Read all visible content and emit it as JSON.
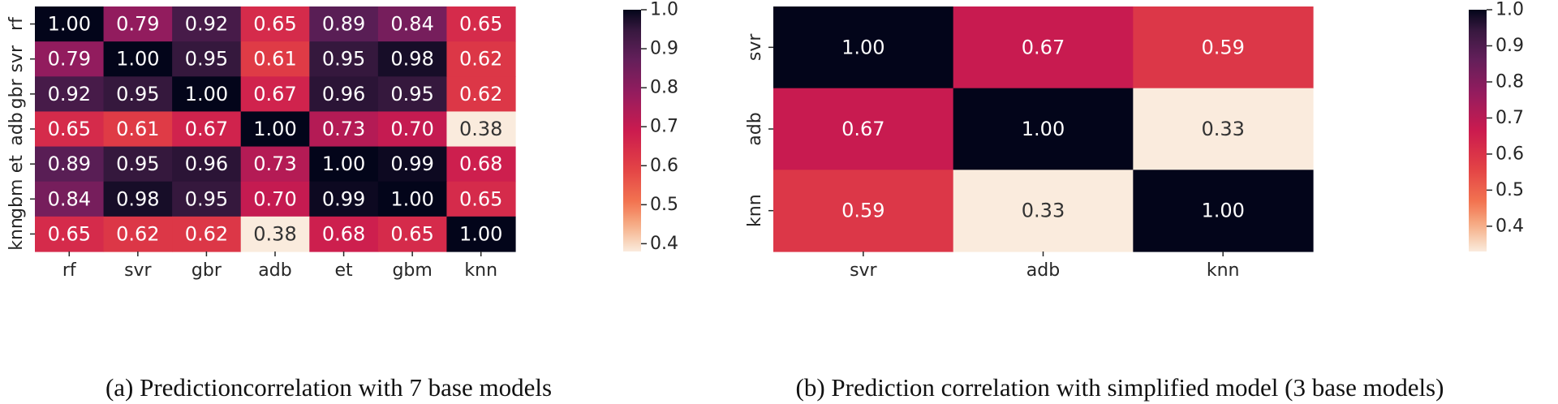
{
  "chart_data": [
    {
      "type": "heatmap",
      "caption": "(a) Predictioncorrelation with 7 base models",
      "title": "",
      "xlabel": "",
      "ylabel": "",
      "rows": [
        "rf",
        "svr",
        "gbr",
        "adb",
        "et",
        "gbm",
        "knn"
      ],
      "cols": [
        "rf",
        "svr",
        "gbr",
        "adb",
        "et",
        "gbm",
        "knn"
      ],
      "values": [
        [
          1.0,
          0.79,
          0.92,
          0.65,
          0.89,
          0.84,
          0.65
        ],
        [
          0.79,
          1.0,
          0.95,
          0.61,
          0.95,
          0.98,
          0.62
        ],
        [
          0.92,
          0.95,
          1.0,
          0.67,
          0.96,
          0.95,
          0.62
        ],
        [
          0.65,
          0.61,
          0.67,
          1.0,
          0.73,
          0.7,
          0.38
        ],
        [
          0.89,
          0.95,
          0.96,
          0.73,
          1.0,
          0.99,
          0.68
        ],
        [
          0.84,
          0.98,
          0.95,
          0.7,
          0.99,
          1.0,
          0.65
        ],
        [
          0.65,
          0.62,
          0.62,
          0.38,
          0.68,
          0.65,
          1.0
        ]
      ],
      "labels": [
        [
          "1.00",
          "0.79",
          "0.92",
          "0.65",
          "0.89",
          "0.84",
          "0.65"
        ],
        [
          "0.79",
          "1.00",
          "0.95",
          "0.61",
          "0.95",
          "0.98",
          "0.62"
        ],
        [
          "0.92",
          "0.95",
          "1.00",
          "0.67",
          "0.96",
          "0.95",
          "0.62"
        ],
        [
          "0.65",
          "0.61",
          "0.67",
          "1.00",
          "0.73",
          "0.70",
          "0.38"
        ],
        [
          "0.89",
          "0.95",
          "0.96",
          "0.73",
          "1.00",
          "0.99",
          "0.68"
        ],
        [
          "0.84",
          "0.98",
          "0.95",
          "0.70",
          "0.99",
          "1.00",
          "0.65"
        ],
        [
          "0.65",
          "0.62",
          "0.62",
          "0.38",
          "0.68",
          "0.65",
          "1.00"
        ]
      ],
      "colorbar": {
        "range": [
          0.38,
          1.0
        ],
        "ticks": [
          1.0,
          0.9,
          0.8,
          0.7,
          0.6,
          0.5,
          0.4
        ],
        "tick_labels": [
          "1.0",
          "0.9",
          "0.8",
          "0.7",
          "0.6",
          "0.5",
          "0.4"
        ],
        "colormap": "rocket"
      }
    },
    {
      "type": "heatmap",
      "caption": "(b) Prediction correlation with simplified model (3 base models)",
      "title": "",
      "xlabel": "",
      "ylabel": "",
      "rows": [
        "svr",
        "adb",
        "knn"
      ],
      "cols": [
        "svr",
        "adb",
        "knn"
      ],
      "values": [
        [
          1.0,
          0.67,
          0.59
        ],
        [
          0.67,
          1.0,
          0.33
        ],
        [
          0.59,
          0.33,
          1.0
        ]
      ],
      "labels": [
        [
          "1.00",
          "0.67",
          "0.59"
        ],
        [
          "0.67",
          "1.00",
          "0.33"
        ],
        [
          "0.59",
          "0.33",
          "1.00"
        ]
      ],
      "colorbar": {
        "range": [
          0.33,
          1.0
        ],
        "ticks": [
          1.0,
          0.9,
          0.8,
          0.7,
          0.6,
          0.5,
          0.4
        ],
        "tick_labels": [
          "1.0",
          "0.9",
          "0.8",
          "0.7",
          "0.6",
          "0.5",
          "0.4"
        ],
        "colormap": "rocket"
      }
    }
  ]
}
